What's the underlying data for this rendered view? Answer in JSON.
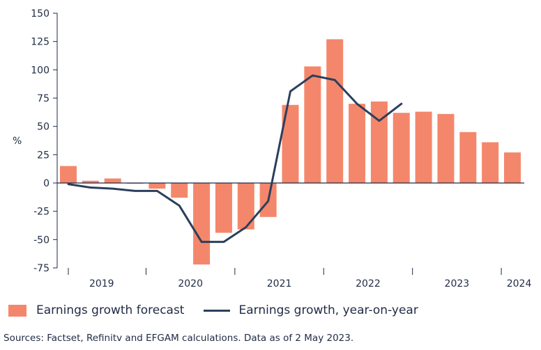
{
  "chart_data": {
    "type": "bar",
    "ylabel": "%",
    "ylim": [
      -75,
      150
    ],
    "yticks": [
      -75,
      -50,
      -25,
      0,
      25,
      50,
      75,
      100,
      125,
      150
    ],
    "year_labels": [
      "2019",
      "2020",
      "2021",
      "2022",
      "2023",
      "2024"
    ],
    "grid": false,
    "series": [
      {
        "name": "Earnings growth forecast",
        "kind": "bar",
        "color": "#f4876b",
        "values": [
          15,
          2,
          4,
          0,
          -5,
          -13,
          -72,
          -44,
          -41,
          -30,
          69,
          103,
          127,
          70,
          72,
          62,
          63,
          61,
          45,
          36,
          27
        ]
      },
      {
        "name": "Earnings growth, year-on-year",
        "kind": "line",
        "color": "#2b3f5c",
        "values": [
          -1,
          -4,
          -5,
          -7,
          -7,
          -20,
          -52,
          -52,
          -39,
          -16,
          81,
          95,
          91,
          70,
          55,
          70
        ]
      }
    ]
  },
  "legend": {
    "bar_label": "Earnings growth forecast",
    "line_label": "Earnings growth, year-on-year"
  },
  "source": "Sources: Factset, Refinitv and EFGAM calculations. Data as of 2 May 2023."
}
